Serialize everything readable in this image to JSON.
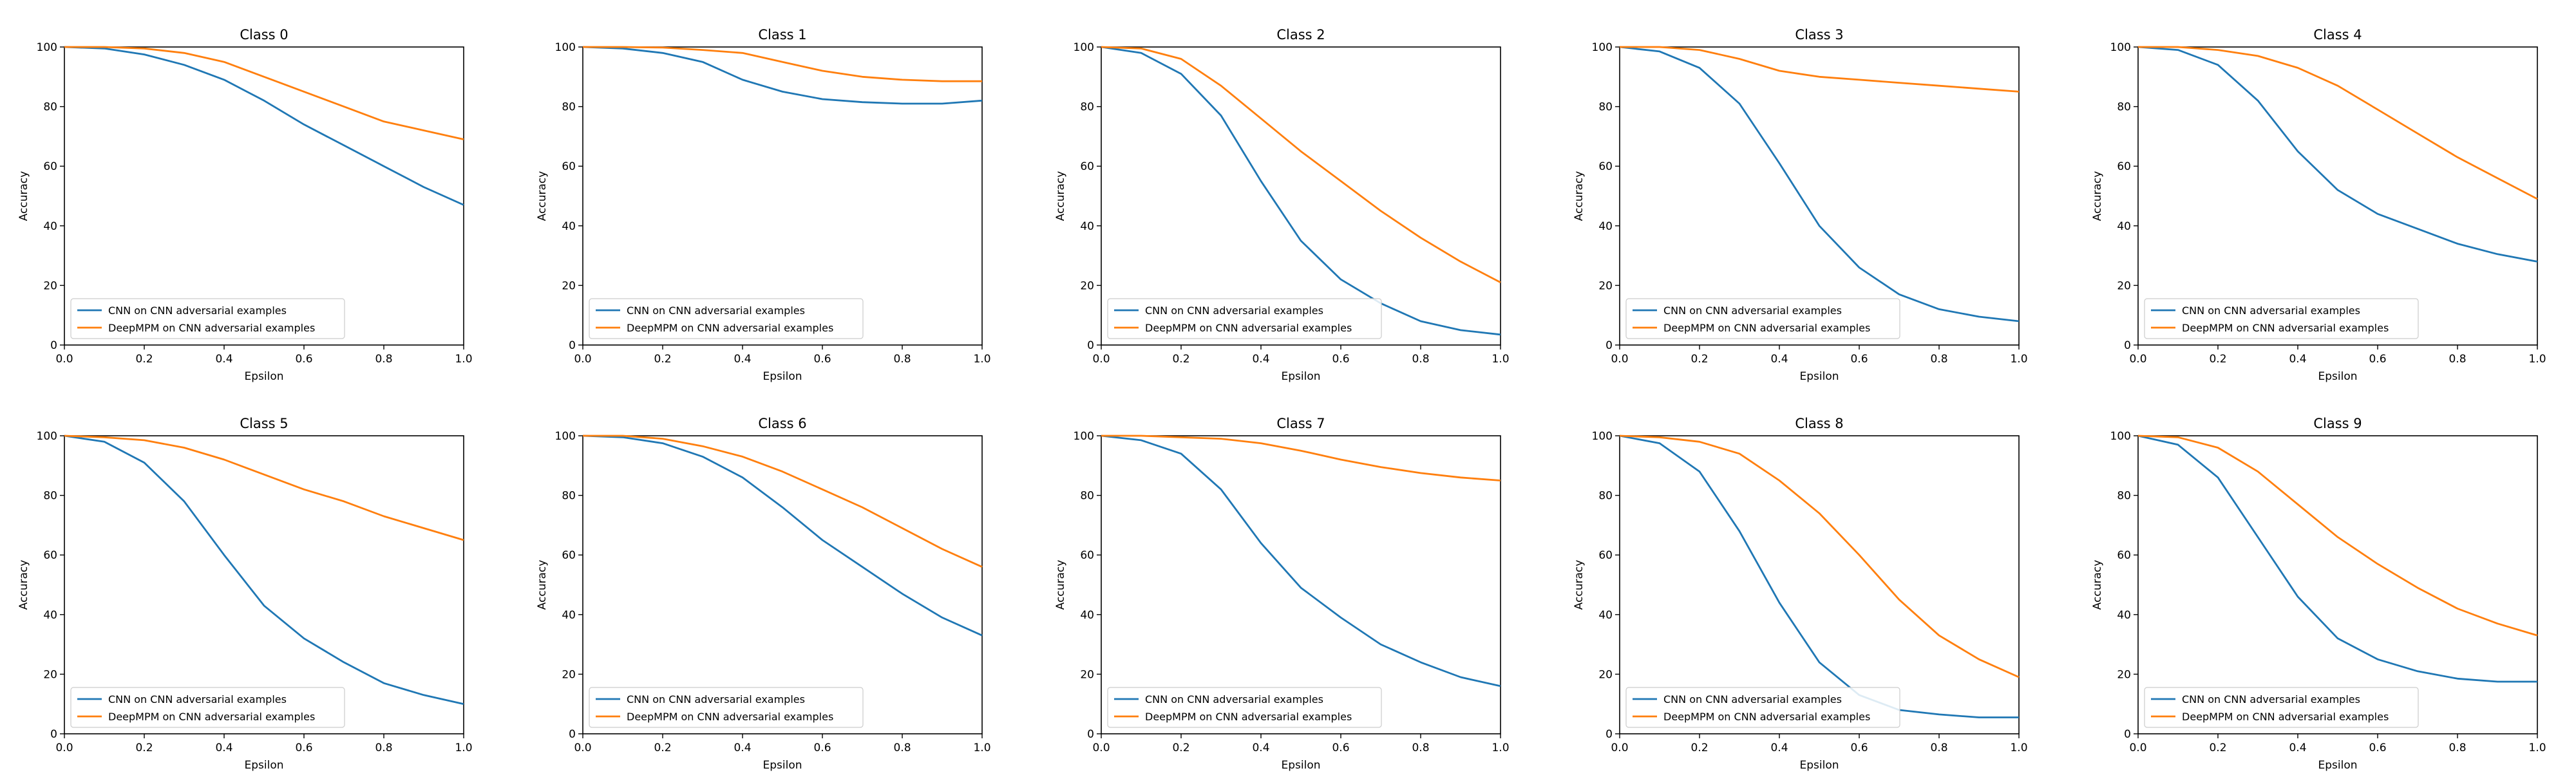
{
  "chart_data": [
    {
      "type": "line",
      "title": "Class 0",
      "xlabel": "Epsilon",
      "ylabel": "Accuracy",
      "xlim": [
        0.0,
        1.0
      ],
      "ylim": [
        0,
        100
      ],
      "xticks": [
        "0.0",
        "0.2",
        "0.4",
        "0.6",
        "0.8",
        "1.0"
      ],
      "yticks": [
        "0",
        "20",
        "40",
        "60",
        "80",
        "100"
      ],
      "grid": false,
      "legend_position": "lower left",
      "x": [
        0.0,
        0.1,
        0.2,
        0.3,
        0.4,
        0.5,
        0.6,
        0.7,
        0.8,
        0.9,
        1.0
      ],
      "series": [
        {
          "name": "CNN on CNN adversarial examples",
          "color": "#1f77b4",
          "values": [
            100,
            99.5,
            97.5,
            94,
            89,
            82,
            74,
            67,
            60,
            53,
            47
          ]
        },
        {
          "name": "DeepMPM on CNN adversarial examples",
          "color": "#ff7f0e",
          "values": [
            100,
            100,
            99.5,
            98,
            95,
            90,
            85,
            80,
            75,
            72,
            69
          ]
        }
      ]
    },
    {
      "type": "line",
      "title": "Class 1",
      "xlabel": "Epsilon",
      "ylabel": "Accuracy",
      "xlim": [
        0.0,
        1.0
      ],
      "ylim": [
        0,
        100
      ],
      "xticks": [
        "0.0",
        "0.2",
        "0.4",
        "0.6",
        "0.8",
        "1.0"
      ],
      "yticks": [
        "0",
        "20",
        "40",
        "60",
        "80",
        "100"
      ],
      "grid": false,
      "legend_position": "lower left",
      "x": [
        0.0,
        0.1,
        0.2,
        0.3,
        0.4,
        0.5,
        0.6,
        0.7,
        0.8,
        0.9,
        1.0
      ],
      "series": [
        {
          "name": "CNN on CNN adversarial examples",
          "color": "#1f77b4",
          "values": [
            100,
            99.5,
            98,
            95,
            89,
            85,
            82.5,
            81.5,
            81,
            81,
            82
          ]
        },
        {
          "name": "DeepMPM on CNN adversarial examples",
          "color": "#ff7f0e",
          "values": [
            100,
            100,
            99.8,
            99,
            98,
            95,
            92,
            90,
            89,
            88.5,
            88.5
          ]
        }
      ]
    },
    {
      "type": "line",
      "title": "Class 2",
      "xlabel": "Epsilon",
      "ylabel": "Accuracy",
      "xlim": [
        0.0,
        1.0
      ],
      "ylim": [
        0,
        100
      ],
      "xticks": [
        "0.0",
        "0.2",
        "0.4",
        "0.6",
        "0.8",
        "1.0"
      ],
      "yticks": [
        "0",
        "20",
        "40",
        "60",
        "80",
        "100"
      ],
      "grid": false,
      "legend_position": "lower left",
      "x": [
        0.0,
        0.1,
        0.2,
        0.3,
        0.4,
        0.5,
        0.6,
        0.7,
        0.8,
        0.9,
        1.0
      ],
      "series": [
        {
          "name": "CNN on CNN adversarial examples",
          "color": "#1f77b4",
          "values": [
            100,
            98,
            91,
            77,
            55,
            35,
            22,
            14,
            8,
            5,
            3.5
          ]
        },
        {
          "name": "DeepMPM on CNN adversarial examples",
          "color": "#ff7f0e",
          "values": [
            100,
            99.5,
            96,
            87,
            76,
            65,
            55,
            45,
            36,
            28,
            21
          ]
        }
      ]
    },
    {
      "type": "line",
      "title": "Class 3",
      "xlabel": "Epsilon",
      "ylabel": "Accuracy",
      "xlim": [
        0.0,
        1.0
      ],
      "ylim": [
        0,
        100
      ],
      "xticks": [
        "0.0",
        "0.2",
        "0.4",
        "0.6",
        "0.8",
        "1.0"
      ],
      "yticks": [
        "0",
        "20",
        "40",
        "60",
        "80",
        "100"
      ],
      "grid": false,
      "legend_position": "lower left",
      "x": [
        0.0,
        0.1,
        0.2,
        0.3,
        0.4,
        0.5,
        0.6,
        0.7,
        0.8,
        0.9,
        1.0
      ],
      "series": [
        {
          "name": "CNN on CNN adversarial examples",
          "color": "#1f77b4",
          "values": [
            100,
            98.5,
            93,
            81,
            61,
            40,
            26,
            17,
            12,
            9.5,
            8
          ]
        },
        {
          "name": "DeepMPM on CNN adversarial examples",
          "color": "#ff7f0e",
          "values": [
            100,
            100,
            99,
            96,
            92,
            90,
            89,
            88,
            87,
            86,
            85
          ]
        }
      ]
    },
    {
      "type": "line",
      "title": "Class 4",
      "xlabel": "Epsilon",
      "ylabel": "Accuracy",
      "xlim": [
        0.0,
        1.0
      ],
      "ylim": [
        0,
        100
      ],
      "xticks": [
        "0.0",
        "0.2",
        "0.4",
        "0.6",
        "0.8",
        "1.0"
      ],
      "yticks": [
        "0",
        "20",
        "40",
        "60",
        "80",
        "100"
      ],
      "grid": false,
      "legend_position": "lower left",
      "x": [
        0.0,
        0.1,
        0.2,
        0.3,
        0.4,
        0.5,
        0.6,
        0.7,
        0.8,
        0.9,
        1.0
      ],
      "series": [
        {
          "name": "CNN on CNN adversarial examples",
          "color": "#1f77b4",
          "values": [
            100,
            99,
            94,
            82,
            65,
            52,
            44,
            39,
            34,
            30.5,
            28
          ]
        },
        {
          "name": "DeepMPM on CNN adversarial examples",
          "color": "#ff7f0e",
          "values": [
            100,
            100,
            99,
            97,
            93,
            87,
            79,
            71,
            63,
            56,
            49
          ]
        }
      ]
    },
    {
      "type": "line",
      "title": "Class 5",
      "xlabel": "Epsilon",
      "ylabel": "Accuracy",
      "xlim": [
        0.0,
        1.0
      ],
      "ylim": [
        0,
        100
      ],
      "xticks": [
        "0.0",
        "0.2",
        "0.4",
        "0.6",
        "0.8",
        "1.0"
      ],
      "yticks": [
        "0",
        "20",
        "40",
        "60",
        "80",
        "100"
      ],
      "grid": false,
      "legend_position": "lower left",
      "x": [
        0.0,
        0.1,
        0.2,
        0.3,
        0.4,
        0.5,
        0.6,
        0.7,
        0.8,
        0.9,
        1.0
      ],
      "series": [
        {
          "name": "CNN on CNN adversarial examples",
          "color": "#1f77b4",
          "values": [
            100,
            98,
            91,
            78,
            60,
            43,
            32,
            24,
            17,
            13,
            10
          ]
        },
        {
          "name": "DeepMPM on CNN adversarial examples",
          "color": "#ff7f0e",
          "values": [
            100,
            99.5,
            98.5,
            96,
            92,
            87,
            82,
            78,
            73,
            69,
            65
          ]
        }
      ]
    },
    {
      "type": "line",
      "title": "Class 6",
      "xlabel": "Epsilon",
      "ylabel": "Accuracy",
      "xlim": [
        0.0,
        1.0
      ],
      "ylim": [
        0,
        100
      ],
      "xticks": [
        "0.0",
        "0.2",
        "0.4",
        "0.6",
        "0.8",
        "1.0"
      ],
      "yticks": [
        "0",
        "20",
        "40",
        "60",
        "80",
        "100"
      ],
      "grid": false,
      "legend_position": "lower left",
      "x": [
        0.0,
        0.1,
        0.2,
        0.3,
        0.4,
        0.5,
        0.6,
        0.7,
        0.8,
        0.9,
        1.0
      ],
      "series": [
        {
          "name": "CNN on CNN adversarial examples",
          "color": "#1f77b4",
          "values": [
            100,
            99.5,
            97.5,
            93,
            86,
            76,
            65,
            56,
            47,
            39,
            33
          ]
        },
        {
          "name": "DeepMPM on CNN adversarial examples",
          "color": "#ff7f0e",
          "values": [
            100,
            100,
            99,
            96.5,
            93,
            88,
            82,
            76,
            69,
            62,
            56
          ]
        }
      ]
    },
    {
      "type": "line",
      "title": "Class 7",
      "xlabel": "Epsilon",
      "ylabel": "Accuracy",
      "xlim": [
        0.0,
        1.0
      ],
      "ylim": [
        0,
        100
      ],
      "xticks": [
        "0.0",
        "0.2",
        "0.4",
        "0.6",
        "0.8",
        "1.0"
      ],
      "yticks": [
        "0",
        "20",
        "40",
        "60",
        "80",
        "100"
      ],
      "grid": false,
      "legend_position": "lower left",
      "x": [
        0.0,
        0.1,
        0.2,
        0.3,
        0.4,
        0.5,
        0.6,
        0.7,
        0.8,
        0.9,
        1.0
      ],
      "series": [
        {
          "name": "CNN on CNN adversarial examples",
          "color": "#1f77b4",
          "values": [
            100,
            98.5,
            94,
            82,
            64,
            49,
            39,
            30,
            24,
            19,
            16
          ]
        },
        {
          "name": "DeepMPM on CNN adversarial examples",
          "color": "#ff7f0e",
          "values": [
            100,
            100,
            99.5,
            99,
            97.5,
            95,
            92,
            89.5,
            87.5,
            86,
            85
          ]
        }
      ]
    },
    {
      "type": "line",
      "title": "Class 8",
      "xlabel": "Epsilon",
      "ylabel": "Accuracy",
      "xlim": [
        0.0,
        1.0
      ],
      "ylim": [
        0,
        100
      ],
      "xticks": [
        "0.0",
        "0.2",
        "0.4",
        "0.6",
        "0.8",
        "1.0"
      ],
      "yticks": [
        "0",
        "20",
        "40",
        "60",
        "80",
        "100"
      ],
      "grid": false,
      "legend_position": "lower left",
      "x": [
        0.0,
        0.1,
        0.2,
        0.3,
        0.4,
        0.5,
        0.6,
        0.7,
        0.8,
        0.9,
        1.0
      ],
      "series": [
        {
          "name": "CNN on CNN adversarial examples",
          "color": "#1f77b4",
          "values": [
            100,
            97.5,
            88,
            68,
            44,
            24,
            13,
            8,
            6.5,
            5.5,
            5.5
          ]
        },
        {
          "name": "DeepMPM on CNN adversarial examples",
          "color": "#ff7f0e",
          "values": [
            100,
            99.5,
            98,
            94,
            85,
            74,
            60,
            45,
            33,
            25,
            19
          ]
        }
      ]
    },
    {
      "type": "line",
      "title": "Class 9",
      "xlabel": "Epsilon",
      "ylabel": "Accuracy",
      "xlim": [
        0.0,
        1.0
      ],
      "ylim": [
        0,
        100
      ],
      "xticks": [
        "0.0",
        "0.2",
        "0.4",
        "0.6",
        "0.8",
        "1.0"
      ],
      "yticks": [
        "0",
        "20",
        "40",
        "60",
        "80",
        "100"
      ],
      "grid": false,
      "legend_position": "lower left",
      "x": [
        0.0,
        0.1,
        0.2,
        0.3,
        0.4,
        0.5,
        0.6,
        0.7,
        0.8,
        0.9,
        1.0
      ],
      "series": [
        {
          "name": "CNN on CNN adversarial examples",
          "color": "#1f77b4",
          "values": [
            100,
            97,
            86,
            66,
            46,
            32,
            25,
            21,
            18.5,
            17.5,
            17.5
          ]
        },
        {
          "name": "DeepMPM on CNN adversarial examples",
          "color": "#ff7f0e",
          "values": [
            100,
            99.5,
            96,
            88,
            77,
            66,
            57,
            49,
            42,
            37,
            33
          ]
        }
      ]
    }
  ]
}
